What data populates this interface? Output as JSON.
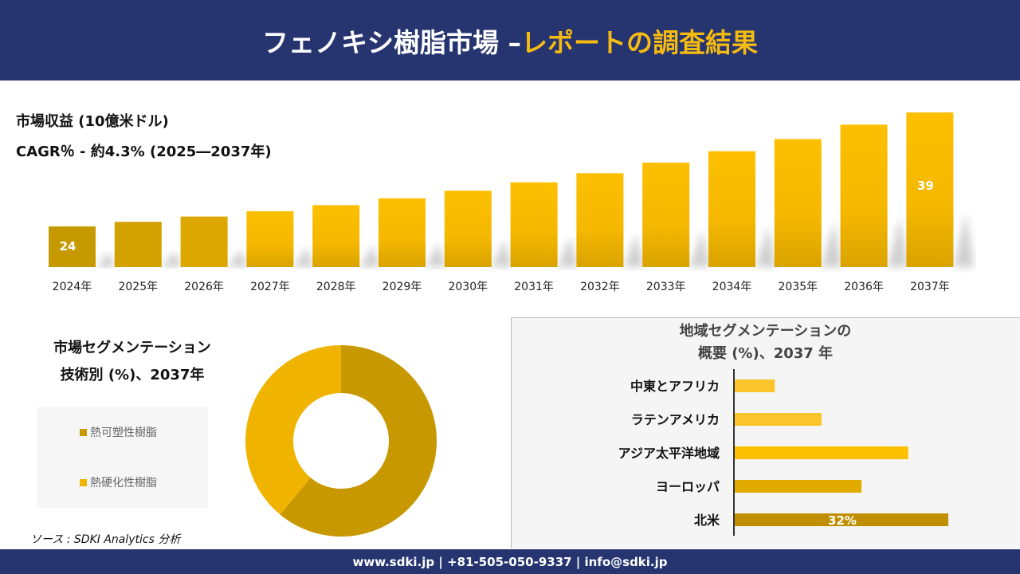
{
  "header": {
    "title_main": "フェノキシ樹脂市場 –",
    "title_accent": "レポートの調査結果"
  },
  "revenue": {
    "unit_label": "市場収益 (10億米ドル)",
    "cagr_label": "CAGR％ - 約4.3% (2025―2037年)"
  },
  "segment": {
    "title_line1": "市場セグメンテーション",
    "title_line2": "技術別 (%)、2037年"
  },
  "region": {
    "title_line1": "地域セグメンテーションの",
    "title_line2": "概要 (%)、2037 年"
  },
  "source": "ソース : SDKI Analytics 分析",
  "footer": "www.sdki.jp | +81-505-050-9337 | info@sdki.jp",
  "chart_data": [
    {
      "type": "bar",
      "categories": [
        "2024年",
        "2025年",
        "2026年",
        "2027年",
        "2028年",
        "2029年",
        "2030年",
        "2031年",
        "2032年",
        "2033年",
        "2034年",
        "2035年",
        "2036年",
        "2037年"
      ],
      "values": [
        24,
        24.6,
        25.3,
        26.0,
        26.8,
        27.7,
        28.7,
        29.8,
        31.0,
        32.4,
        33.9,
        35.5,
        37.4,
        39
      ],
      "data_labels": {
        "0": "24",
        "13": "39"
      },
      "grid": false,
      "colors": [
        "#c49a00",
        "#f5bc00"
      ]
    },
    {
      "type": "pie",
      "donut": true,
      "categories": [
        "熱可塑性樹脂",
        "熱硬化性樹脂"
      ],
      "values": [
        61,
        39
      ],
      "data_labels": [
        "61%",
        ""
      ],
      "colors": [
        "#c79800",
        "#efb300"
      ],
      "legend": "left"
    },
    {
      "type": "bar",
      "orientation": "horizontal",
      "categories": [
        "中東とアフリカ",
        "ラテンアメリカ",
        "アジア太平洋地域",
        "ヨーロッパ",
        "北米"
      ],
      "values": [
        6,
        13,
        26,
        19,
        32
      ],
      "data_labels": [
        "",
        "",
        "",
        "",
        "32%"
      ],
      "colors": [
        "#fbc42a",
        "#fbc42a",
        "#fdc000",
        "#e0aa00",
        "#c08f00"
      ]
    }
  ]
}
